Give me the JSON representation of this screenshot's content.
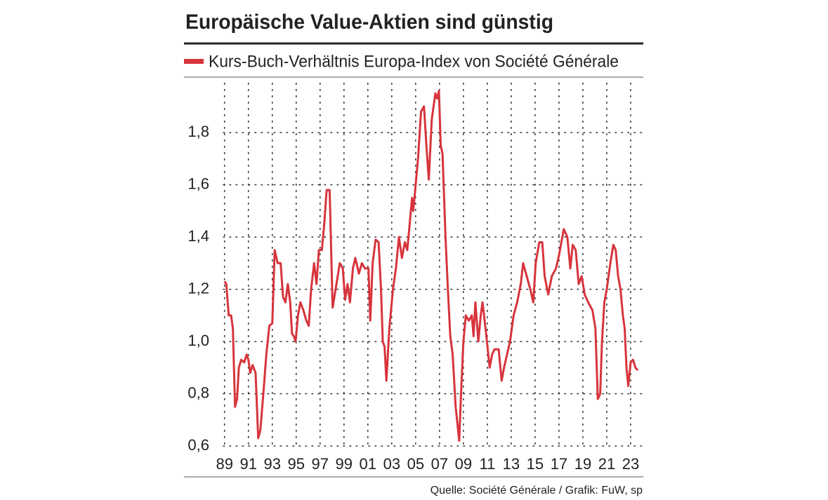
{
  "chart_data": {
    "type": "line",
    "title": "Europäische Value-Aktien sind günstig",
    "source": "Quelle: Société Générale / Grafik: FuW, sp",
    "x": [
      1989.0,
      1989.15,
      1989.35,
      1989.55,
      1989.7,
      1989.88,
      1990.05,
      1990.2,
      1990.4,
      1990.65,
      1990.85,
      1991.0,
      1991.15,
      1991.35,
      1991.6,
      1991.82,
      1992.0,
      1992.25,
      1992.5,
      1992.75,
      1993.0,
      1993.2,
      1993.45,
      1993.7,
      1993.9,
      1994.1,
      1994.3,
      1994.5,
      1994.65,
      1994.8,
      1994.95,
      1995.15,
      1995.35,
      1995.6,
      1995.85,
      1996.05,
      1996.25,
      1996.5,
      1996.7,
      1996.9,
      1997.15,
      1997.35,
      1997.55,
      1997.8,
      1998.05,
      1998.3,
      1998.65,
      1998.9,
      1999.1,
      1999.3,
      1999.5,
      1999.75,
      1999.95,
      2000.25,
      2000.5,
      2000.75,
      2001.05,
      2001.2,
      2001.4,
      2001.65,
      2001.9,
      2002.1,
      2002.25,
      2002.4,
      2002.55,
      2002.8,
      2003.1,
      2003.35,
      2003.6,
      2003.85,
      2004.1,
      2004.3,
      2004.5,
      2004.7,
      2004.8,
      2004.9,
      2005.2,
      2005.45,
      2005.7,
      2005.9,
      2006.1,
      2006.35,
      2006.65,
      2006.8,
      2006.95,
      2007.1,
      2007.25,
      2007.5,
      2007.7,
      2007.9,
      2008.1,
      2008.35,
      2008.65,
      2008.8,
      2009.0,
      2009.2,
      2009.45,
      2009.7,
      2009.85,
      2010.0,
      2010.25,
      2010.45,
      2010.6,
      2010.85,
      2011.2,
      2011.4,
      2011.6,
      2011.95,
      2012.2,
      2012.4,
      2012.65,
      2012.9,
      2013.2,
      2013.5,
      2013.8,
      2014.0,
      2014.3,
      2014.6,
      2014.85,
      2015.05,
      2015.35,
      2015.6,
      2015.8,
      2016.1,
      2016.4,
      2016.75,
      2017.0,
      2017.4,
      2017.7,
      2017.95,
      2018.15,
      2018.4,
      2018.65,
      2018.9,
      2019.15,
      2019.45,
      2019.8,
      2020.05,
      2020.25,
      2020.45,
      2020.6,
      2020.8,
      2021.0,
      2021.3,
      2021.55,
      2021.75,
      2021.95,
      2022.15,
      2022.35,
      2022.5,
      2022.65,
      2022.8,
      2023.0,
      2023.2,
      2023.4,
      2023.6
    ],
    "series": [
      {
        "name": "Kurs-Buch-Verhältnis Europa-Index von Société Générale",
        "color": "#d7343c",
        "values": [
          1.23,
          1.22,
          1.1,
          1.1,
          1.05,
          0.75,
          0.78,
          0.9,
          0.93,
          0.92,
          0.95,
          0.93,
          0.88,
          0.91,
          0.88,
          0.63,
          0.66,
          0.8,
          0.95,
          1.06,
          1.07,
          1.35,
          1.3,
          1.3,
          1.17,
          1.15,
          1.22,
          1.15,
          1.03,
          1.02,
          1.0,
          1.1,
          1.15,
          1.12,
          1.08,
          1.06,
          1.2,
          1.3,
          1.22,
          1.35,
          1.35,
          1.45,
          1.58,
          1.58,
          1.13,
          1.2,
          1.3,
          1.28,
          1.16,
          1.22,
          1.15,
          1.28,
          1.32,
          1.26,
          1.3,
          1.28,
          1.28,
          1.08,
          1.3,
          1.39,
          1.38,
          1.2,
          1.0,
          0.98,
          0.85,
          1.05,
          1.2,
          1.28,
          1.4,
          1.32,
          1.38,
          1.35,
          1.45,
          1.55,
          1.5,
          1.55,
          1.7,
          1.88,
          1.9,
          1.75,
          1.62,
          1.85,
          1.95,
          1.93,
          1.96,
          1.75,
          1.72,
          1.4,
          1.2,
          1.02,
          0.95,
          0.75,
          0.62,
          0.8,
          1.0,
          1.1,
          1.08,
          1.1,
          1.02,
          1.15,
          1.0,
          1.1,
          1.15,
          1.05,
          0.9,
          0.95,
          0.97,
          0.97,
          0.85,
          0.9,
          0.95,
          1.0,
          1.1,
          1.15,
          1.22,
          1.3,
          1.25,
          1.2,
          1.15,
          1.3,
          1.38,
          1.38,
          1.25,
          1.18,
          1.25,
          1.28,
          1.33,
          1.43,
          1.4,
          1.28,
          1.37,
          1.35,
          1.22,
          1.25,
          1.18,
          1.15,
          1.12,
          1.05,
          0.78,
          0.8,
          1.0,
          1.15,
          1.2,
          1.3,
          1.37,
          1.35,
          1.25,
          1.2,
          1.1,
          1.05,
          0.9,
          0.83,
          0.92,
          0.93,
          0.9,
          0.89
        ]
      }
    ],
    "xlim": [
      1988.9,
      2024.0
    ],
    "xticks": [
      {
        "value": 1989,
        "label": "89"
      },
      {
        "value": 1991,
        "label": "91"
      },
      {
        "value": 1993,
        "label": "93"
      },
      {
        "value": 1995,
        "label": "95"
      },
      {
        "value": 1997,
        "label": "97"
      },
      {
        "value": 1999,
        "label": "99"
      },
      {
        "value": 2001,
        "label": "01"
      },
      {
        "value": 2003,
        "label": "03"
      },
      {
        "value": 2005,
        "label": "05"
      },
      {
        "value": 2007,
        "label": "07"
      },
      {
        "value": 2009,
        "label": "09"
      },
      {
        "value": 2011,
        "label": "11"
      },
      {
        "value": 2013,
        "label": "13"
      },
      {
        "value": 2015,
        "label": "15"
      },
      {
        "value": 2017,
        "label": "17"
      },
      {
        "value": 2019,
        "label": "19"
      },
      {
        "value": 2021,
        "label": "21"
      },
      {
        "value": 2023,
        "label": "23"
      }
    ],
    "ylim": [
      0.6,
      2.0
    ],
    "yticks": [
      {
        "value": 0.6,
        "label": "0,6"
      },
      {
        "value": 0.8,
        "label": "0,8"
      },
      {
        "value": 1.0,
        "label": "1,0"
      },
      {
        "value": 1.2,
        "label": "1,2"
      },
      {
        "value": 1.4,
        "label": "1,4"
      },
      {
        "value": 1.6,
        "label": "1,6"
      },
      {
        "value": 1.8,
        "label": "1,8"
      }
    ],
    "grid": true
  }
}
